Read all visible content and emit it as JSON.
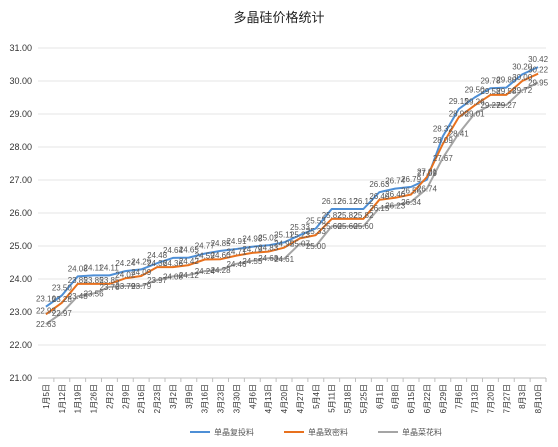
{
  "chart_data": {
    "type": "line",
    "title": "多晶硅价格统计",
    "xlabel": "",
    "ylabel": "",
    "ylim": [
      21,
      31
    ],
    "ytick_labels": [
      "21.00",
      "22.00",
      "23.00",
      "24.00",
      "25.00",
      "26.00",
      "27.00",
      "28.00",
      "29.00",
      "30.00",
      "31.00"
    ],
    "grid": true,
    "legend_position": "bottom",
    "categories": [
      "1月5日",
      "1月12日",
      "1月19日",
      "1月26日",
      "2月2日",
      "2月9日",
      "2月16日",
      "2月23日",
      "3月2日",
      "3月9日",
      "3月16日",
      "3月23日",
      "3月30日",
      "4月6日",
      "4月13日",
      "4月20日",
      "4月27日",
      "5月4日",
      "5月11日",
      "5月18日",
      "5月25日",
      "6月1日",
      "6月8日",
      "6月15日",
      "6月22日",
      "6月29日",
      "7月6日",
      "7月13日",
      "7月20日",
      "7月27日",
      "8月3日",
      "8月10日"
    ],
    "series": [
      {
        "name": "单晶复投料",
        "color": "#4e8fd6",
        "values": [
          23.16,
          23.5,
          24.08,
          24.11,
          24.11,
          24.24,
          24.29,
          24.48,
          24.64,
          24.65,
          24.77,
          24.85,
          24.91,
          24.98,
          25.02,
          25.11,
          25.33,
          25.53,
          26.12,
          26.12,
          26.12,
          26.63,
          26.74,
          26.79,
          27.01,
          28.32,
          29.15,
          29.5,
          29.78,
          29.8,
          30.2,
          30.42
        ],
        "labels": [
          "23.16",
          "23.50",
          "24.08",
          "24.11",
          "24.11",
          "24.24",
          "24.29",
          "24.48",
          "24.64",
          "24.65",
          "24.77",
          "24.85",
          "24.91",
          "24.98",
          "25.02",
          "25.11",
          "25.33",
          "25.53",
          "26.12",
          "26.12",
          "26.12",
          "26.63",
          "26.74",
          "26.79",
          "27.01",
          "28.32",
          "29.15",
          "29.50",
          "29.78",
          "29.80",
          "30.20",
          "30.42"
        ]
      },
      {
        "name": "单晶致密料",
        "color": "#e8711e",
        "values": [
          22.93,
          23.28,
          23.85,
          23.85,
          23.85,
          24.02,
          24.09,
          24.36,
          24.36,
          24.42,
          24.59,
          24.6,
          24.71,
          24.79,
          24.83,
          24.95,
          25.23,
          25.33,
          25.82,
          25.82,
          25.82,
          26.4,
          26.46,
          26.56,
          27.09,
          28.09,
          28.9,
          29.26,
          29.58,
          29.58,
          30.0,
          30.22
        ],
        "labels": [
          "22.93",
          "23.28",
          "23.85",
          "23.85",
          "23.85",
          "24.02",
          "24.09",
          "24.36",
          "24.36",
          "24.42",
          "24.59",
          "24.60",
          "24.71",
          "24.79",
          "24.83",
          "24.95",
          "25.23",
          "25.33",
          "25.82",
          "25.82",
          "25.82",
          "26.40",
          "26.46",
          "26.56",
          "27.09",
          "28.09",
          "28.90",
          "29.26",
          "29.58",
          "29.58",
          "30.00",
          "30.22"
        ]
      },
      {
        "name": "单晶菜花料",
        "color": "#a5a5a5",
        "values": [
          22.63,
          22.97,
          23.48,
          23.56,
          23.76,
          23.79,
          23.79,
          23.97,
          24.08,
          24.12,
          24.24,
          24.28,
          24.46,
          24.55,
          24.63,
          24.61,
          25.07,
          25.0,
          25.6,
          25.6,
          25.6,
          26.15,
          26.23,
          26.34,
          26.74,
          27.67,
          28.41,
          29.01,
          29.27,
          29.27,
          29.72,
          29.95
        ],
        "labels": [
          "22.63",
          "22.97",
          "23.48",
          "23.56",
          "23.76",
          "23.79",
          "23.79",
          "23.97",
          "24.08",
          "24.12",
          "24.24",
          "24.28",
          "24.46",
          "24.55",
          "24.63",
          "24.61",
          "25.07",
          "25.00",
          "25.60",
          "25.60",
          "25.60",
          "26.15",
          "26.23",
          "26.34",
          "26.74",
          "27.67",
          "28.41",
          "29.01",
          "29.27",
          "29.27",
          "29.72",
          "29.95"
        ]
      }
    ]
  }
}
